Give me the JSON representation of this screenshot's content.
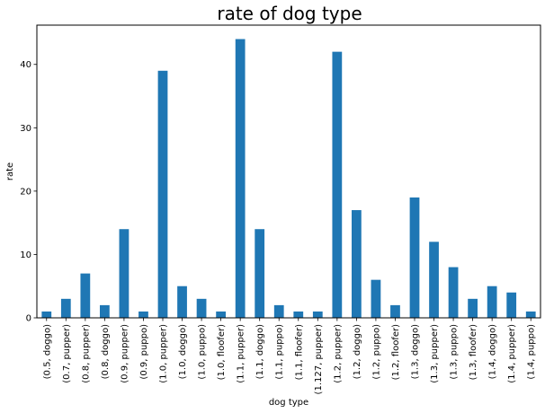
{
  "chart_data": {
    "type": "bar",
    "title": "rate of dog type",
    "xlabel": "dog type",
    "ylabel": "rate",
    "ylim": [
      0,
      46.2
    ],
    "yticks": [
      0,
      10,
      20,
      30,
      40
    ],
    "grid": false,
    "legend": "none",
    "bar_color": "#1f77b4",
    "categories": [
      "(0.5, doggo)",
      "(0.7, pupper)",
      "(0.8, pupper)",
      "(0.8, doggo)",
      "(0.9, pupper)",
      "(0.9, puppo)",
      "(1.0, pupper)",
      "(1.0, doggo)",
      "(1.0, puppo)",
      "(1.0, floofer)",
      "(1.1, pupper)",
      "(1.1, doggo)",
      "(1.1, puppo)",
      "(1.1, floofer)",
      "(1.127, pupper)",
      "(1.2, pupper)",
      "(1.2, doggo)",
      "(1.2, puppo)",
      "(1.2, floofer)",
      "(1.3, doggo)",
      "(1.3, pupper)",
      "(1.3, puppo)",
      "(1.3, floofer)",
      "(1.4, doggo)",
      "(1.4, pupper)",
      "(1.4, puppo)"
    ],
    "values": [
      1,
      3,
      7,
      2,
      14,
      1,
      39,
      5,
      3,
      1,
      44,
      14,
      2,
      1,
      1,
      42,
      17,
      6,
      2,
      19,
      12,
      8,
      3,
      5,
      4,
      1
    ]
  }
}
